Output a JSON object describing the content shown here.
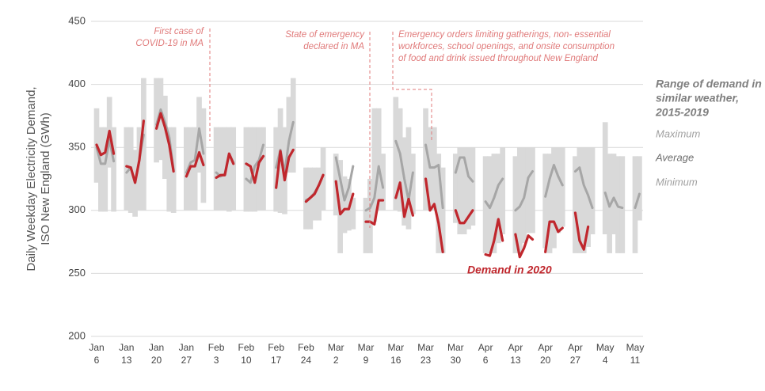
{
  "chart_data": {
    "type": "range-line",
    "y_label_lines": [
      "Daily Weekday Electricity Demand,",
      "ISO New England (GWh)"
    ],
    "legend_title_lines": [
      "Range of demand in",
      "similar weather,",
      "2015-2019"
    ],
    "annotations": [
      {
        "lines": [
          "First case of",
          "COVID-19 in MA"
        ]
      },
      {
        "lines": [
          "State of emergency",
          "declared in MA"
        ]
      },
      {
        "lines": [
          "Emergency orders limiting gatherings, non- essential",
          "workforces, school openings, and onsite consumption",
          "of food and drink issued throughout New England"
        ]
      }
    ],
    "categories": [
      "Jan 6",
      null,
      null,
      null,
      null,
      null,
      null,
      "Jan 13",
      null,
      null,
      null,
      null,
      null,
      null,
      "Jan 20",
      null,
      null,
      null,
      null,
      null,
      null,
      "Jan 27",
      null,
      null,
      null,
      null,
      null,
      null,
      "Feb 3",
      null,
      null,
      null,
      null,
      null,
      null,
      "Feb 10",
      null,
      null,
      null,
      null,
      null,
      null,
      "Feb 17",
      null,
      null,
      null,
      null,
      null,
      null,
      "Feb 24",
      null,
      null,
      null,
      null,
      null,
      null,
      "Mar 2",
      null,
      null,
      null,
      null,
      null,
      null,
      "Mar 9",
      null,
      null,
      null,
      null,
      null,
      null,
      "Mar 16",
      null,
      null,
      null,
      null,
      null,
      null,
      "Mar 23",
      null,
      null,
      null,
      null,
      null,
      null,
      "Mar 30",
      null,
      null,
      null,
      null,
      null,
      null,
      "Apr 6",
      null,
      null,
      null,
      null,
      null,
      null,
      "Apr 13",
      null,
      null,
      null,
      null,
      null,
      null,
      "Apr 20",
      null,
      null,
      null,
      null,
      null,
      null,
      "Apr 27",
      null,
      null,
      null,
      null,
      null,
      null,
      "May 4",
      null,
      null,
      null,
      null,
      null,
      null,
      "May 11",
      null
    ],
    "series": [
      {
        "name": "Maximum",
        "color": "#d9d9d9",
        "values": [
          381,
          366,
          366,
          390,
          366,
          null,
          null,
          366,
          366,
          348,
          366,
          405,
          null,
          null,
          405,
          405,
          391,
          366,
          366,
          null,
          null,
          366,
          366,
          366,
          390,
          381,
          null,
          null,
          366,
          366,
          366,
          366,
          366,
          null,
          null,
          366,
          366,
          366,
          366,
          366,
          null,
          null,
          366,
          381,
          366,
          390,
          405,
          null,
          null,
          334,
          334,
          334,
          334,
          350,
          null,
          null,
          345,
          340,
          327,
          325,
          310,
          null,
          null,
          310,
          325,
          381,
          381,
          345,
          null,
          null,
          390,
          381,
          358,
          366,
          345,
          null,
          null,
          381,
          366,
          366,
          345,
          334,
          null,
          null,
          345,
          350,
          350,
          350,
          350,
          null,
          null,
          343,
          343,
          345,
          345,
          350,
          null,
          null,
          343,
          350,
          350,
          350,
          350,
          null,
          null,
          345,
          345,
          350,
          350,
          350,
          null,
          null,
          343,
          350,
          350,
          350,
          350,
          null,
          null,
          370,
          345,
          345,
          343,
          343,
          null,
          null,
          343,
          343
        ]
      },
      {
        "name": "Minimum",
        "color": "#d9d9d9",
        "values": [
          322,
          299,
          299,
          334,
          299,
          null,
          null,
          300,
          298,
          295,
          300,
          300,
          null,
          null,
          338,
          340,
          325,
          299,
          298,
          null,
          null,
          300,
          300,
          300,
          330,
          306,
          null,
          null,
          300,
          300,
          300,
          299,
          300,
          null,
          null,
          299,
          299,
          299,
          300,
          300,
          null,
          null,
          299,
          298,
          297,
          330,
          330,
          null,
          null,
          285,
          285,
          292,
          292,
          300,
          null,
          null,
          296,
          266,
          282,
          284,
          285,
          null,
          null,
          266,
          266,
          291,
          300,
          300,
          null,
          null,
          300,
          299,
          288,
          285,
          297,
          null,
          null,
          300,
          300,
          300,
          266,
          266,
          null,
          null,
          290,
          281,
          281,
          285,
          288,
          null,
          null,
          266,
          266,
          266,
          274,
          281,
          null,
          null,
          266,
          266,
          274,
          282,
          282,
          null,
          null,
          270,
          266,
          270,
          282,
          287,
          null,
          null,
          266,
          266,
          266,
          271,
          281,
          null,
          null,
          281,
          266,
          281,
          266,
          266,
          null,
          null,
          266,
          292
        ]
      },
      {
        "name": "Average",
        "color": "#a6a6a6",
        "values": [
          350,
          337,
          337,
          356,
          339,
          null,
          null,
          330,
          334,
          322,
          340,
          360,
          null,
          null,
          368,
          380,
          370,
          358,
          332,
          null,
          null,
          330,
          338,
          340,
          365,
          345,
          null,
          null,
          330,
          327,
          329,
          345,
          338,
          null,
          null,
          325,
          322,
          335,
          340,
          352,
          null,
          null,
          334,
          348,
          330,
          355,
          370,
          null,
          null,
          308,
          310,
          314,
          320,
          328,
          null,
          null,
          342,
          325,
          308,
          318,
          335,
          null,
          null,
          300,
          302,
          310,
          335,
          318,
          null,
          null,
          355,
          345,
          325,
          308,
          330,
          null,
          null,
          352,
          334,
          334,
          336,
          302,
          null,
          null,
          330,
          342,
          342,
          327,
          323,
          null,
          null,
          307,
          302,
          310,
          320,
          325,
          null,
          null,
          300,
          303,
          310,
          326,
          331,
          null,
          null,
          311,
          325,
          336,
          327,
          320,
          null,
          null,
          331,
          334,
          320,
          312,
          302,
          null,
          null,
          314,
          303,
          310,
          303,
          302,
          null,
          null,
          302,
          313
        ]
      },
      {
        "name": "Demand in 2020",
        "color": "#c0272d",
        "values": [
          352,
          344,
          346,
          363,
          345,
          null,
          null,
          335,
          334,
          322,
          340,
          371,
          null,
          null,
          365,
          377,
          366,
          352,
          331,
          null,
          null,
          327,
          335,
          335,
          346,
          336,
          null,
          null,
          326,
          328,
          328,
          345,
          337,
          null,
          null,
          337,
          335,
          322,
          338,
          343,
          null,
          null,
          318,
          347,
          324,
          342,
          348,
          null,
          null,
          307,
          310,
          313,
          320,
          328,
          null,
          null,
          323,
          297,
          301,
          301,
          313,
          null,
          null,
          291,
          291,
          289,
          308,
          308,
          null,
          null,
          310,
          322,
          295,
          309,
          296,
          null,
          null,
          325,
          300,
          305,
          290,
          267,
          null,
          null,
          300,
          290,
          290,
          295,
          300,
          null,
          null,
          265,
          264,
          276,
          293,
          276,
          null,
          null,
          281,
          263,
          270,
          280,
          277,
          null,
          null,
          267,
          291,
          291,
          283,
          286,
          null,
          null,
          298,
          276,
          269,
          287,
          null,
          null,
          null,
          null,
          null,
          null,
          null,
          null,
          null,
          null,
          null,
          null
        ]
      }
    ],
    "ylim": [
      200,
      450
    ],
    "yticks": [
      200,
      250,
      300,
      350,
      400,
      450
    ],
    "grid": true
  }
}
